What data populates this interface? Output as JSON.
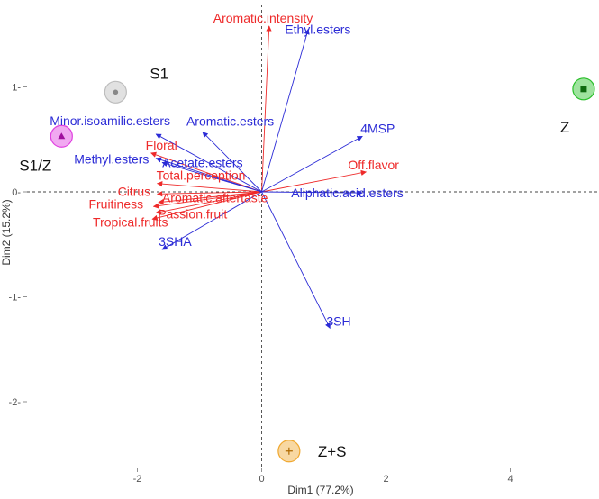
{
  "chart_data": {
    "type": "scatter",
    "subtype": "pca-biplot",
    "title": "",
    "xlabel": "Dim1 (77.2%)",
    "ylabel": "Dim2 (15.2%)",
    "xlim": [
      -3.2,
      5.3
    ],
    "ylim": [
      -2.65,
      1.65
    ],
    "xticks": [
      -2,
      0,
      2,
      4
    ],
    "yticks": [
      -2,
      -1,
      0,
      1
    ],
    "grid": false,
    "reference_lines": {
      "x": 0,
      "y": 0,
      "style": "dashed"
    },
    "colors": {
      "sensory": "#ee2a2a",
      "chemical": "#2b2bd6",
      "S1": "#bdbdbd",
      "S1/Z": "#e040e0",
      "Z": "#2bc02b",
      "Z+S": "#f0a830"
    },
    "groups": [
      {
        "name": "S1",
        "x": -2.35,
        "y": 0.95,
        "marker": "circle",
        "color": "#bdbdbd"
      },
      {
        "name": "S1/Z",
        "x": -3.22,
        "y": 0.53,
        "marker": "triangle",
        "color": "#e040e0"
      },
      {
        "name": "Z",
        "x": 5.18,
        "y": 0.98,
        "marker": "square",
        "color": "#2bc02b"
      },
      {
        "name": "Z+S",
        "x": 0.44,
        "y": -2.47,
        "marker": "plus",
        "color": "#f0a830"
      }
    ],
    "variables": [
      {
        "name": "Aromatic.intensity",
        "type": "sensory",
        "x": 0.12,
        "y": 1.58
      },
      {
        "name": "Off.flavor",
        "type": "sensory",
        "x": 1.68,
        "y": 0.19
      },
      {
        "name": "Floral",
        "type": "sensory",
        "x": -1.78,
        "y": 0.37
      },
      {
        "name": "Total.perception",
        "type": "sensory",
        "x": -1.68,
        "y": 0.08
      },
      {
        "name": "Citrus",
        "type": "sensory",
        "x": -1.68,
        "y": -0.02
      },
      {
        "name": "Aromatic.aftertaste",
        "type": "sensory",
        "x": -1.66,
        "y": -0.1
      },
      {
        "name": "Fruitiness",
        "type": "sensory",
        "x": -1.74,
        "y": -0.14
      },
      {
        "name": "Passion.fruit",
        "type": "sensory",
        "x": -1.7,
        "y": -0.2
      },
      {
        "name": "Tropical.fruits",
        "type": "sensory",
        "x": -1.76,
        "y": -0.26
      },
      {
        "name": "Ethyl.esters",
        "type": "chemical",
        "x": 0.75,
        "y": 1.55
      },
      {
        "name": "Minor.isoamilic.esters",
        "type": "chemical",
        "x": -1.7,
        "y": 0.55
      },
      {
        "name": "Aromatic.esters",
        "type": "chemical",
        "x": -0.95,
        "y": 0.57
      },
      {
        "name": "4MSP",
        "type": "chemical",
        "x": 1.62,
        "y": 0.53
      },
      {
        "name": "Methyl.esters",
        "type": "chemical",
        "x": -1.7,
        "y": 0.32
      },
      {
        "name": "Acetate.esters",
        "type": "chemical",
        "x": -1.6,
        "y": 0.28
      },
      {
        "name": "Aliphatic.acid.esters",
        "type": "chemical",
        "x": 1.62,
        "y": -0.01
      },
      {
        "name": "3SHA",
        "type": "chemical",
        "x": -1.6,
        "y": -0.55
      },
      {
        "name": "3SH",
        "type": "chemical",
        "x": 1.1,
        "y": -1.3
      }
    ]
  }
}
